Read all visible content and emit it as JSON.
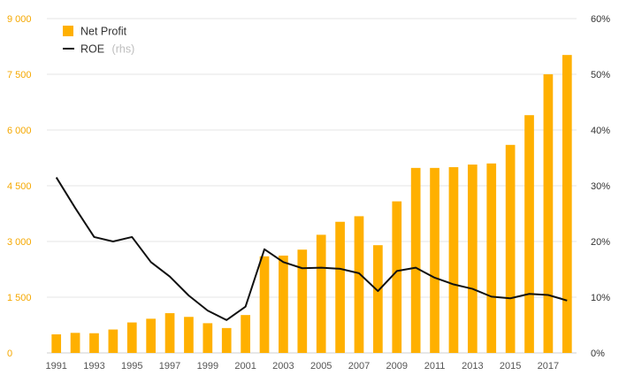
{
  "chart_data": {
    "type": "bar",
    "title": "",
    "xlabel": "",
    "ylabel": "",
    "categories": [
      "1991",
      "1992",
      "1993",
      "1994",
      "1995",
      "1996",
      "1997",
      "1998",
      "1999",
      "2000",
      "2001",
      "2002",
      "2003",
      "2004",
      "2005",
      "2006",
      "2007",
      "2008",
      "2009",
      "2010",
      "2011",
      "2012",
      "2013",
      "2014",
      "2015",
      "2016",
      "2017",
      "2018"
    ],
    "x_tick_labels": [
      "1991",
      "1993",
      "1995",
      "1997",
      "1999",
      "2001",
      "2003",
      "2005",
      "2007",
      "2009",
      "2011",
      "2013",
      "2015",
      "2017"
    ],
    "series": [
      {
        "name": "Net Profit",
        "type": "bar",
        "axis": "left",
        "color": "#ffb000",
        "values": [
          500,
          540,
          530,
          630,
          820,
          920,
          1070,
          970,
          800,
          670,
          1020,
          2600,
          2620,
          2780,
          3180,
          3530,
          3680,
          2900,
          4080,
          4980,
          4980,
          5000,
          5070,
          5100,
          5600,
          6400,
          7500,
          8020
        ]
      },
      {
        "name": "ROE",
        "name_note": "(rhs)",
        "type": "line",
        "axis": "right",
        "color": "#111111",
        "values": [
          31.5,
          26,
          20.8,
          20,
          20.8,
          16.3,
          13.7,
          10.3,
          7.6,
          5.9,
          8.3,
          18.6,
          16.3,
          15.2,
          15.3,
          15.1,
          14.3,
          11.1,
          14.7,
          15.3,
          13.5,
          12.3,
          11.5,
          10.1,
          9.8,
          10.6,
          10.4,
          9.4
        ]
      }
    ],
    "y_left": {
      "range": [
        0,
        9000
      ],
      "ticks": [
        0,
        1500,
        3000,
        4500,
        6000,
        7500,
        9000
      ],
      "tick_labels": [
        "0",
        "1 500",
        "3 000",
        "4 500",
        "6 000",
        "7 500",
        "9 000"
      ]
    },
    "y_right": {
      "range": [
        0,
        60
      ],
      "ticks": [
        0,
        10,
        20,
        30,
        40,
        50,
        60
      ],
      "tick_labels": [
        "0%",
        "10%",
        "20%",
        "30%",
        "40%",
        "50%",
        "60%"
      ]
    },
    "grid": true,
    "legend": {
      "position": "top-left",
      "items": [
        {
          "label": "Net Profit",
          "note": ""
        },
        {
          "label": "ROE",
          "note": "(rhs)"
        }
      ]
    },
    "colors": {
      "left_axis_text": "#f5a800",
      "right_axis_text": "#333333",
      "x_axis_text": "#555555"
    }
  }
}
